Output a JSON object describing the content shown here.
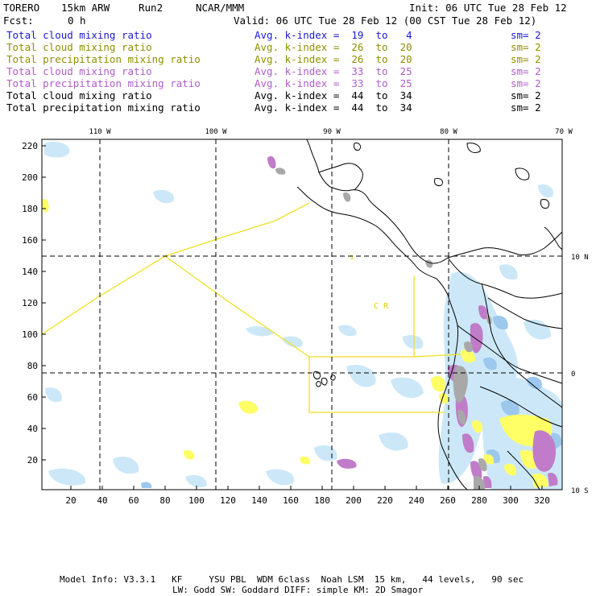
{
  "header": {
    "model": "TORERO",
    "resolution": "15km ARW",
    "run": "Run2",
    "org": "NCAR/MMM",
    "init": "Init: 06 UTC Tue 28 Feb 12",
    "fcst_label": "Fcst:",
    "fcst_value": "0 h",
    "valid": "Valid: 06 UTC Tue 28 Feb 12 (00 CST Tue 28 Feb 12)"
  },
  "legend_rows": [
    {
      "field": "Total cloud mixing ratio",
      "range": "Avg. k-index =  19  to   4",
      "sm": "sm= 2",
      "color": "#1a1ad0"
    },
    {
      "field": "Total cloud mixing ratio",
      "range": "Avg. k-index =  26  to  20",
      "sm": "sm= 2",
      "color": "#8f8f00"
    },
    {
      "field": "Total precipitation mixing ratio",
      "range": "Avg. k-index =  26  to  20",
      "sm": "sm= 2",
      "color": "#8f8f00"
    },
    {
      "field": "Total cloud mixing ratio",
      "range": "Avg. k-index =  33  to  25",
      "sm": "sm= 2",
      "color": "#b05cc8"
    },
    {
      "field": "Total precipitation mixing ratio",
      "range": "Avg. k-index =  33  to  25",
      "sm": "sm= 2",
      "color": "#b05cc8"
    },
    {
      "field": "Total cloud mixing ratio",
      "range": "Avg. k-index =  44  to  34",
      "sm": "sm= 2",
      "color": "#000000"
    },
    {
      "field": "Total precipitation mixing ratio",
      "range": "Avg. k-index =  44  to  34",
      "sm": "sm= 2",
      "color": "#000000"
    }
  ],
  "map": {
    "lon_labels": [
      "110 W",
      "100 W",
      "90 W",
      "80 W",
      "70 W"
    ],
    "lat_labels": [
      "10 N",
      "0",
      "10 S"
    ],
    "y_ticks": [
      "220",
      "200",
      "180",
      "160",
      "140",
      "120",
      "100",
      "80",
      "60",
      "40",
      "20"
    ],
    "x_ticks": [
      "20",
      "40",
      "60",
      "80",
      "100",
      "120",
      "140",
      "160",
      "180",
      "200",
      "220",
      "240",
      "260",
      "280",
      "300",
      "320"
    ],
    "region_label": "C R",
    "colors": {
      "yellow": "#ffff66",
      "light_blue": "#cce8f8",
      "mid_blue": "#9cc8ee",
      "purple": "#c07cc8",
      "gray": "#a8a8a8",
      "boundary_yellow": "#f0e020",
      "coast": "#000000"
    }
  },
  "footer": {
    "line1": "Model Info: V3.3.1   KF     YSU PBL  WDM 6class  Noah LSM  15 km,   44 levels,   90 sec",
    "line2": "LW: Godd SW: Goddard DIFF: simple KM: 2D Smagor"
  }
}
